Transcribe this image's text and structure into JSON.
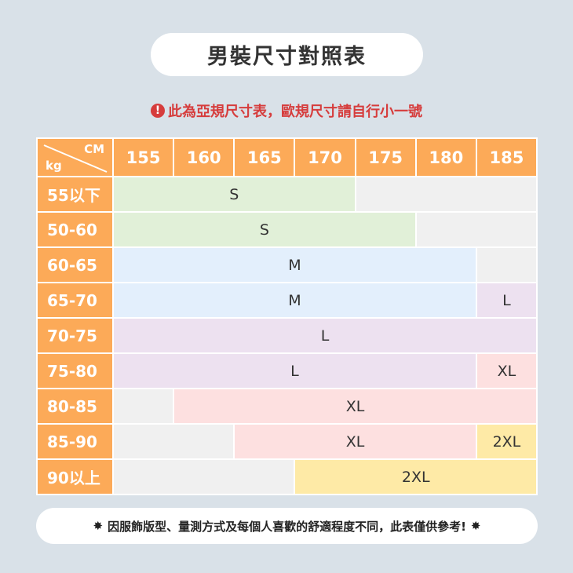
{
  "title": "男裝尺寸對照表",
  "notice": "此為亞規尺寸表，歐規尺寸請自行小一號",
  "notice_icon": "exclamation-circle-icon",
  "table": {
    "corner_top": "CM",
    "corner_bottom": "kg",
    "heights": [
      "155",
      "160",
      "165",
      "170",
      "175",
      "180",
      "185"
    ],
    "colors": {
      "header": "#fcaa58",
      "S": "#e1f0d8",
      "M": "#e3effc",
      "L": "#ede1f0",
      "XL": "#fde0e0",
      "2XL": "#feeaa6",
      "none": "#f0f0f0"
    },
    "rows": [
      {
        "weight": "55以下",
        "segments": [
          {
            "label": "S",
            "span": 4
          },
          {
            "label": "",
            "span": 3
          }
        ]
      },
      {
        "weight": "50-60",
        "segments": [
          {
            "label": "S",
            "span": 5
          },
          {
            "label": "",
            "span": 2
          }
        ]
      },
      {
        "weight": "60-65",
        "segments": [
          {
            "label": "M",
            "span": 6
          },
          {
            "label": "",
            "span": 1
          }
        ]
      },
      {
        "weight": "65-70",
        "segments": [
          {
            "label": "M",
            "span": 6
          },
          {
            "label": "L",
            "span": 1
          }
        ]
      },
      {
        "weight": "70-75",
        "segments": [
          {
            "label": "L",
            "span": 7
          }
        ]
      },
      {
        "weight": "75-80",
        "segments": [
          {
            "label": "L",
            "span": 6
          },
          {
            "label": "XL",
            "span": 1
          }
        ]
      },
      {
        "weight": "80-85",
        "segments": [
          {
            "label": "",
            "span": 1
          },
          {
            "label": "XL",
            "span": 6
          }
        ]
      },
      {
        "weight": "85-90",
        "segments": [
          {
            "label": "",
            "span": 2
          },
          {
            "label": "XL",
            "span": 4
          },
          {
            "label": "2XL",
            "span": 1
          }
        ]
      },
      {
        "weight": "90以上",
        "segments": [
          {
            "label": "",
            "span": 3
          },
          {
            "label": "2XL",
            "span": 4
          }
        ]
      }
    ]
  },
  "footer": "因服飾版型、量測方式及每個人喜歡的舒適程度不同，此表僅供參考!",
  "footer_icon": "star-burst-icon"
}
